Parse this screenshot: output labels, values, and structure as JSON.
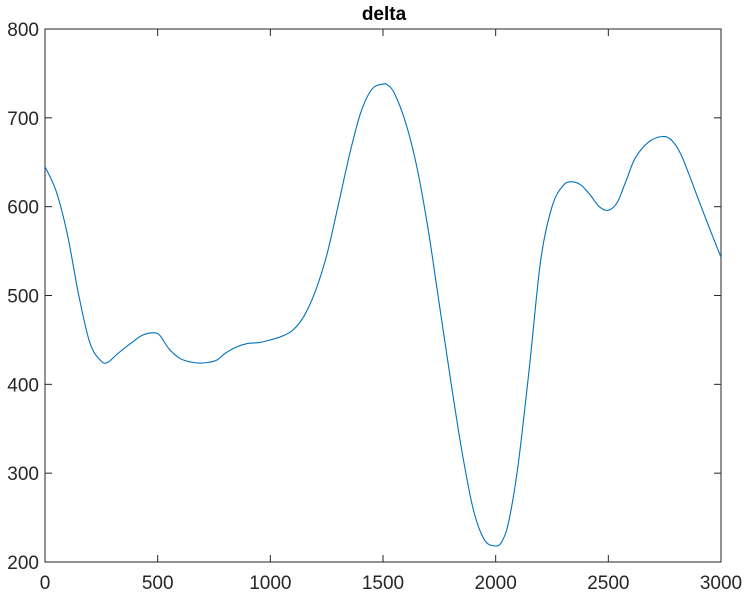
{
  "chart_data": {
    "type": "line",
    "title": "delta",
    "xlabel": "",
    "ylabel": "",
    "xlim": [
      0,
      3000
    ],
    "ylim": [
      200,
      800
    ],
    "xticks": [
      0,
      500,
      1000,
      1500,
      2000,
      2500,
      3000
    ],
    "yticks": [
      200,
      300,
      400,
      500,
      600,
      700,
      800
    ],
    "xtick_labels": [
      "0",
      "500",
      "1000",
      "1500",
      "2000",
      "2500",
      "3000"
    ],
    "ytick_labels": [
      "200",
      "300",
      "400",
      "500",
      "600",
      "700",
      "800"
    ],
    "grid": false,
    "box": true,
    "series": [
      {
        "color": "#0072BD",
        "x": [
          0,
          50,
          100,
          150,
          200,
          250,
          280,
          320,
          380,
          430,
          480,
          510,
          550,
          600,
          650,
          700,
          760,
          800,
          850,
          900,
          950,
          1000,
          1050,
          1100,
          1150,
          1200,
          1250,
          1300,
          1350,
          1400,
          1450,
          1500,
          1520,
          1550,
          1600,
          1650,
          1700,
          1750,
          1800,
          1850,
          1900,
          1950,
          2000,
          2030,
          2060,
          2100,
          2150,
          2200,
          2250,
          2300,
          2340,
          2380,
          2420,
          2460,
          2500,
          2540,
          2580,
          2620,
          2680,
          2740,
          2780,
          2820,
          2860,
          2900,
          2950,
          3000
        ],
        "y": [
          645,
          617,
          568,
          500,
          446,
          426,
          425,
          434,
          446,
          455,
          458,
          455,
          440,
          429,
          425,
          424,
          427,
          435,
          442,
          446,
          447,
          450,
          454,
          461,
          477,
          505,
          545,
          600,
          657,
          705,
          732,
          738,
          737,
          728,
          695,
          645,
          575,
          490,
          405,
          325,
          260,
          225,
          218,
          224,
          248,
          310,
          420,
          540,
          600,
          624,
          628,
          624,
          613,
          600,
          596,
          605,
          630,
          655,
          673,
          679,
          675,
          660,
          635,
          608,
          575,
          543
        ]
      }
    ]
  }
}
